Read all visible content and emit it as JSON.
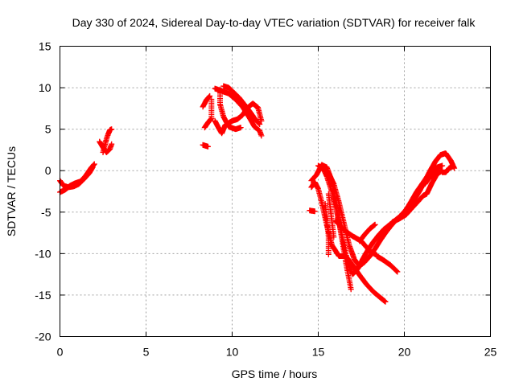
{
  "chart_data": {
    "type": "scatter",
    "title": "Day 330 of 2024, Sidereal Day-to-day VTEC variation (SDTVAR) for receiver falk",
    "xlabel": "GPS time / hours",
    "ylabel": "SDTVAR / TECUs",
    "xlim": [
      0,
      25
    ],
    "ylim": [
      -20,
      15
    ],
    "xticks": [
      "0",
      "5",
      "10",
      "15",
      "20",
      "25"
    ],
    "yticks": [
      "-20",
      "-15",
      "-10",
      "-5",
      "0",
      "5",
      "10",
      "15"
    ],
    "grid": true,
    "marker": "plus",
    "color": "#ff0000",
    "tracks": [
      [
        [
          0.0,
          -2.6
        ],
        [
          0.3,
          -2.3
        ],
        [
          0.6,
          -1.8
        ],
        [
          0.9,
          -1.5
        ],
        [
          1.2,
          -1.3
        ],
        [
          1.5,
          -0.6
        ],
        [
          1.8,
          0.3
        ],
        [
          2.0,
          0.8
        ]
      ],
      [
        [
          0.0,
          -1.2
        ],
        [
          0.2,
          -1.8
        ],
        [
          0.5,
          -2.0
        ],
        [
          0.8,
          -1.9
        ],
        [
          1.1,
          -1.6
        ],
        [
          1.4,
          -1.0
        ],
        [
          1.7,
          -0.3
        ],
        [
          1.9,
          0.4
        ]
      ],
      [
        [
          2.3,
          3.5
        ],
        [
          2.5,
          2.8
        ],
        [
          2.7,
          2.2
        ],
        [
          2.9,
          2.6
        ],
        [
          3.0,
          3.2
        ]
      ],
      [
        [
          2.5,
          2.2
        ],
        [
          2.6,
          3.0
        ],
        [
          2.7,
          3.8
        ],
        [
          2.8,
          4.4
        ],
        [
          2.9,
          4.9
        ],
        [
          3.0,
          5.0
        ]
      ],
      [
        [
          8.3,
          3.1
        ],
        [
          8.6,
          2.9
        ]
      ],
      [
        [
          8.4,
          5.2
        ],
        [
          8.6,
          5.8
        ],
        [
          8.8,
          6.3
        ],
        [
          8.8,
          8.6
        ]
      ],
      [
        [
          8.3,
          7.7
        ],
        [
          8.5,
          8.5
        ],
        [
          8.7,
          9.0
        ]
      ],
      [
        [
          9.0,
          9.9
        ],
        [
          9.4,
          9.6
        ],
        [
          9.8,
          9.3
        ],
        [
          10.2,
          8.6
        ],
        [
          10.6,
          7.7
        ],
        [
          11.0,
          6.4
        ],
        [
          11.3,
          5.3
        ],
        [
          11.6,
          4.8
        ],
        [
          11.7,
          4.2
        ]
      ],
      [
        [
          9.5,
          10.2
        ],
        [
          9.8,
          10.0
        ],
        [
          10.1,
          9.4
        ],
        [
          10.4,
          8.8
        ],
        [
          10.7,
          8.0
        ],
        [
          11.0,
          7.2
        ],
        [
          11.3,
          6.3
        ],
        [
          11.6,
          5.6
        ]
      ],
      [
        [
          9.3,
          9.8
        ],
        [
          9.3,
          8.0
        ],
        [
          9.5,
          6.5
        ],
        [
          9.8,
          5.3
        ],
        [
          10.2,
          5.0
        ],
        [
          10.5,
          5.2
        ]
      ],
      [
        [
          9.0,
          6.0
        ],
        [
          9.2,
          5.2
        ],
        [
          9.4,
          4.5
        ],
        [
          9.6,
          5.5
        ],
        [
          10.0,
          6.0
        ],
        [
          10.3,
          6.2
        ],
        [
          10.6,
          6.7
        ],
        [
          10.9,
          7.6
        ],
        [
          11.2,
          8.1
        ],
        [
          11.5,
          7.6
        ],
        [
          11.7,
          6.0
        ]
      ],
      [
        [
          15.0,
          0.6
        ],
        [
          15.3,
          0.2
        ],
        [
          15.5,
          -0.7
        ],
        [
          15.8,
          -2.6
        ],
        [
          16.1,
          -5.2
        ],
        [
          16.4,
          -8.1
        ],
        [
          16.7,
          -11.0
        ],
        [
          17.0,
          -12.5
        ],
        [
          17.3,
          -11.8
        ],
        [
          17.6,
          -10.6
        ],
        [
          17.9,
          -9.5
        ],
        [
          18.2,
          -8.6
        ],
        [
          18.5,
          -7.8
        ],
        [
          18.8,
          -7.1
        ],
        [
          19.1,
          -6.6
        ],
        [
          19.4,
          -6.1
        ],
        [
          19.7,
          -5.6
        ],
        [
          20.0,
          -5.1
        ],
        [
          20.3,
          -4.4
        ],
        [
          20.6,
          -3.4
        ],
        [
          20.9,
          -2.4
        ],
        [
          21.2,
          -1.2
        ],
        [
          21.5,
          0.0
        ],
        [
          21.8,
          1.1
        ],
        [
          22.1,
          1.9
        ],
        [
          22.4,
          2.1
        ],
        [
          22.7,
          1.2
        ],
        [
          22.9,
          0.3
        ]
      ],
      [
        [
          15.3,
          0.4
        ],
        [
          15.6,
          -0.3
        ],
        [
          15.9,
          -1.6
        ],
        [
          16.2,
          -3.8
        ],
        [
          16.5,
          -6.4
        ],
        [
          16.8,
          -9.0
        ],
        [
          17.1,
          -10.7
        ],
        [
          17.4,
          -11.5
        ],
        [
          17.7,
          -11.0
        ],
        [
          18.0,
          -10.3
        ],
        [
          18.3,
          -9.4
        ],
        [
          18.6,
          -8.4
        ],
        [
          18.9,
          -7.5
        ],
        [
          19.2,
          -6.7
        ],
        [
          19.5,
          -6.0
        ],
        [
          19.8,
          -5.4
        ],
        [
          20.1,
          -4.7
        ],
        [
          20.4,
          -3.7
        ],
        [
          20.7,
          -2.6
        ],
        [
          21.0,
          -1.7
        ],
        [
          21.3,
          -0.8
        ],
        [
          21.6,
          -0.1
        ],
        [
          21.9,
          0.4
        ],
        [
          22.2,
          0.6
        ]
      ],
      [
        [
          14.6,
          -1.2
        ],
        [
          14.9,
          -0.5
        ],
        [
          15.2,
          0.7
        ],
        [
          15.5,
          0.4
        ],
        [
          15.8,
          -1.3
        ],
        [
          16.0,
          -3.6
        ],
        [
          16.3,
          -7.3
        ],
        [
          16.6,
          -11.0
        ],
        [
          16.9,
          -14.3
        ]
      ],
      [
        [
          14.5,
          -4.8
        ],
        [
          14.8,
          -4.9
        ]
      ],
      [
        [
          14.6,
          -2.0
        ],
        [
          14.8,
          -1.4
        ],
        [
          15.0,
          -2.2
        ],
        [
          15.2,
          -3.8
        ],
        [
          15.5,
          -6.6
        ],
        [
          15.8,
          -9.0
        ],
        [
          16.2,
          -10.3
        ],
        [
          16.6,
          -10.3
        ],
        [
          17.0,
          -11.4
        ],
        [
          17.4,
          -12.6
        ],
        [
          17.8,
          -13.7
        ],
        [
          18.2,
          -14.6
        ],
        [
          18.6,
          -15.3
        ],
        [
          18.9,
          -15.8
        ]
      ],
      [
        [
          15.4,
          -4.0
        ],
        [
          15.5,
          -6.0
        ],
        [
          15.6,
          -8.0
        ],
        [
          15.6,
          -10.1
        ]
      ],
      [
        [
          15.6,
          -2.8
        ],
        [
          15.7,
          -4.5
        ],
        [
          15.8,
          -6.2
        ],
        [
          15.9,
          -8.0
        ]
      ],
      [
        [
          16.0,
          -6.0
        ],
        [
          16.5,
          -7.2
        ],
        [
          17.0,
          -7.9
        ],
        [
          17.5,
          -8.5
        ],
        [
          18.0,
          -9.7
        ],
        [
          18.4,
          -10.2
        ]
      ],
      [
        [
          17.4,
          -8.5
        ],
        [
          17.7,
          -7.7
        ],
        [
          18.0,
          -7.0
        ],
        [
          18.3,
          -6.5
        ]
      ],
      [
        [
          18.4,
          -10.3
        ],
        [
          18.8,
          -10.8
        ],
        [
          19.2,
          -11.4
        ],
        [
          19.6,
          -12.2
        ]
      ],
      [
        [
          19.3,
          -6.2
        ],
        [
          19.7,
          -5.8
        ],
        [
          20.1,
          -5.3
        ],
        [
          20.4,
          -4.6
        ],
        [
          20.8,
          -3.7
        ],
        [
          21.1,
          -3.0
        ],
        [
          21.3,
          -2.8
        ],
        [
          21.6,
          -1.5
        ],
        [
          21.9,
          -0.4
        ],
        [
          22.2,
          0.0
        ]
      ],
      [
        [
          22.2,
          -0.2
        ],
        [
          22.4,
          -0.2
        ],
        [
          22.6,
          0.3
        ],
        [
          22.8,
          0.5
        ]
      ],
      [
        [
          21.2,
          -1.6
        ],
        [
          21.4,
          -1.0
        ],
        [
          21.6,
          -0.6
        ],
        [
          21.8,
          -0.2
        ],
        [
          22.0,
          0.0
        ]
      ]
    ]
  }
}
